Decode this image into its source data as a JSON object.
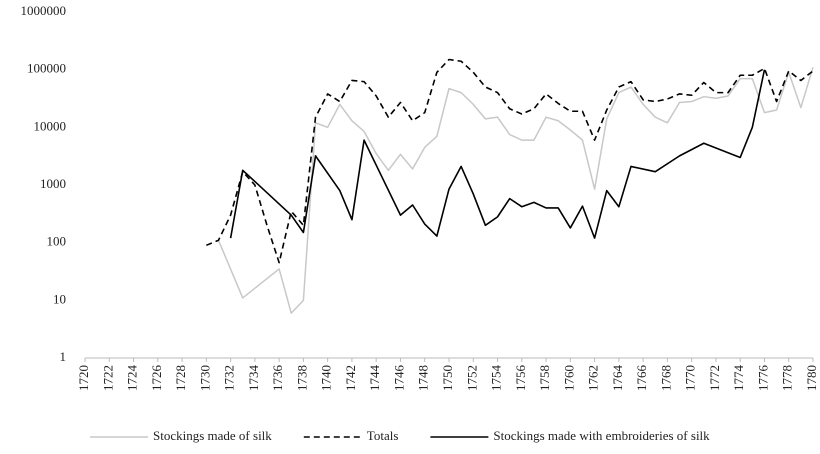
{
  "chart_data": {
    "type": "line",
    "log_y": true,
    "legend": "bottom",
    "xlim": [
      1720,
      1780
    ],
    "xticks": [
      1720,
      1722,
      1724,
      1726,
      1728,
      1730,
      1732,
      1734,
      1736,
      1738,
      1740,
      1742,
      1744,
      1746,
      1748,
      1750,
      1752,
      1754,
      1756,
      1758,
      1760,
      1762,
      1764,
      1766,
      1768,
      1770,
      1772,
      1774,
      1776,
      1778,
      1780
    ],
    "ylim": [
      1,
      1000000
    ],
    "yticks": [
      1,
      10,
      100,
      1000,
      10000,
      100000,
      1000000
    ],
    "series": [
      {
        "name": "Stockings made of silk",
        "color": "#c8c8c8",
        "dashed": false,
        "x": [
          1731,
          1733,
          1736,
          1737,
          1738,
          1739,
          1740,
          1741,
          1742,
          1743,
          1744,
          1745,
          1746,
          1747,
          1748,
          1749,
          1750,
          1751,
          1752,
          1753,
          1754,
          1755,
          1756,
          1757,
          1758,
          1759,
          1760,
          1761,
          1762,
          1763,
          1764,
          1765,
          1766,
          1767,
          1768,
          1769,
          1770,
          1771,
          1772,
          1773,
          1774,
          1775,
          1776,
          1777,
          1778,
          1779,
          1780
        ],
        "values": [
          110,
          11,
          35,
          6,
          10,
          12000,
          10000,
          25000,
          13000,
          8500,
          3500,
          1800,
          3400,
          1900,
          4500,
          7000,
          47000,
          40000,
          25000,
          14000,
          15000,
          7500,
          6000,
          6000,
          15000,
          13000,
          9000,
          6000,
          850,
          14000,
          40000,
          50000,
          25000,
          15000,
          12000,
          27000,
          28000,
          34000,
          32000,
          35000,
          70000,
          70000,
          18000,
          20000,
          90000,
          22000,
          110000
        ]
      },
      {
        "name": "Totals",
        "color": "#000000",
        "dashed": true,
        "x": [
          1730,
          1731,
          1732,
          1733,
          1734,
          1735,
          1736,
          1737,
          1738,
          1739,
          1740,
          1741,
          1742,
          1743,
          1744,
          1745,
          1746,
          1747,
          1748,
          1749,
          1750,
          1751,
          1752,
          1753,
          1754,
          1755,
          1756,
          1757,
          1758,
          1759,
          1760,
          1761,
          1762,
          1763,
          1764,
          1765,
          1766,
          1767,
          1768,
          1769,
          1770,
          1771,
          1772,
          1773,
          1774,
          1775,
          1776,
          1777,
          1778,
          1779,
          1780
        ],
        "values": [
          90,
          110,
          300,
          1700,
          1000,
          200,
          45,
          350,
          200,
          15000,
          38000,
          28000,
          65000,
          62000,
          35000,
          15000,
          27000,
          13000,
          18000,
          90000,
          150000,
          140000,
          90000,
          50000,
          40000,
          21000,
          17000,
          21000,
          38000,
          26000,
          19000,
          19000,
          6000,
          20000,
          50000,
          62000,
          30000,
          28000,
          31000,
          38000,
          36000,
          60000,
          40000,
          40000,
          80000,
          80000,
          105000,
          28000,
          95000,
          65000,
          95000
        ]
      },
      {
        "name": "Stockings made with embroideries of silk",
        "color": "#000000",
        "dashed": false,
        "x": [
          1732,
          1733,
          1737,
          1738,
          1739,
          1741,
          1742,
          1743,
          1746,
          1747,
          1748,
          1749,
          1750,
          1751,
          1752,
          1753,
          1754,
          1755,
          1756,
          1757,
          1758,
          1759,
          1760,
          1761,
          1762,
          1763,
          1764,
          1765,
          1767,
          1769,
          1771,
          1774,
          1775,
          1776
        ],
        "values": [
          120,
          1800,
          300,
          150,
          3200,
          800,
          250,
          6000,
          300,
          450,
          210,
          130,
          850,
          2100,
          700,
          200,
          280,
          580,
          420,
          500,
          400,
          400,
          180,
          430,
          120,
          800,
          420,
          2100,
          1700,
          3200,
          5300,
          3000,
          10000,
          100000
        ]
      }
    ]
  }
}
